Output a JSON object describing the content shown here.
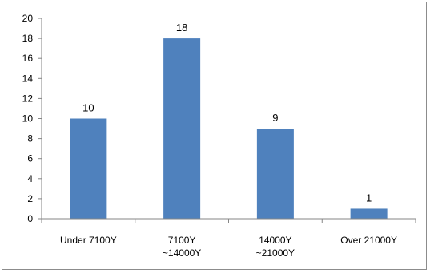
{
  "chart_data": {
    "type": "bar",
    "categories": [
      [
        "Under 7100Y"
      ],
      [
        "7100Y",
        "~14000Y"
      ],
      [
        "14000Y",
        "~21000Y"
      ],
      [
        "Over 21000Y"
      ]
    ],
    "values": [
      10,
      18,
      9,
      1
    ],
    "data_labels": [
      "10",
      "18",
      "9",
      "1"
    ],
    "ylim": [
      0,
      20
    ],
    "yticks": [
      "0",
      "2",
      "4",
      "6",
      "8",
      "10",
      "12",
      "14",
      "16",
      "18",
      "20"
    ],
    "title": "",
    "xlabel": "",
    "ylabel": "",
    "grid": false,
    "legend": "none",
    "bar_color": "#4f81bd"
  }
}
